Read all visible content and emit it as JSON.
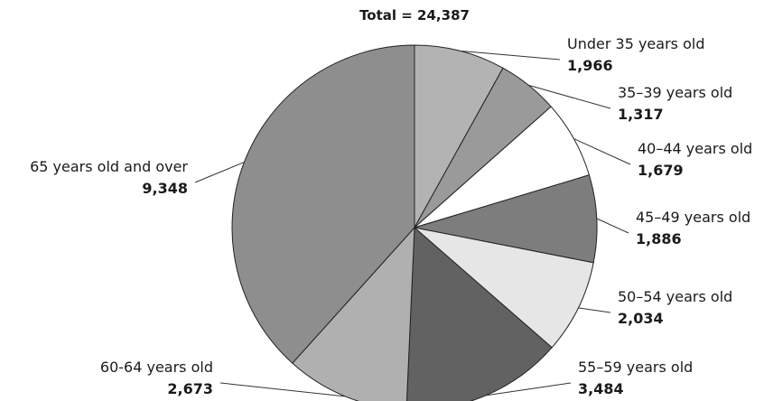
{
  "chart_data": {
    "type": "pie",
    "title": "Total = 24,387",
    "start": "12 o'clock",
    "direction": "clockwise",
    "slices": [
      {
        "label": "Under 35 years old",
        "value": 1966,
        "value_label": "1,966",
        "color": "#b3b3b3"
      },
      {
        "label": "35–39 years old",
        "value": 1317,
        "value_label": "1,317",
        "color": "#9a9a9a"
      },
      {
        "label": "40–44 years old",
        "value": 1679,
        "value_label": "1,679",
        "color": "#ffffff"
      },
      {
        "label": "45–49 years old",
        "value": 1886,
        "value_label": "1,886",
        "color": "#7d7d7d"
      },
      {
        "label": "50–54 years old",
        "value": 2034,
        "value_label": "2,034",
        "color": "#e6e6e6"
      },
      {
        "label": "55–59 years old",
        "value": 3484,
        "value_label": "3,484",
        "color": "#626262"
      },
      {
        "label": "60-64 years old",
        "value": 2673,
        "value_label": "2,673",
        "color": "#b0b0b0"
      },
      {
        "label": "65 years old and over",
        "value": 9348,
        "value_label": "9,348",
        "color": "#8e8e8e"
      }
    ]
  }
}
